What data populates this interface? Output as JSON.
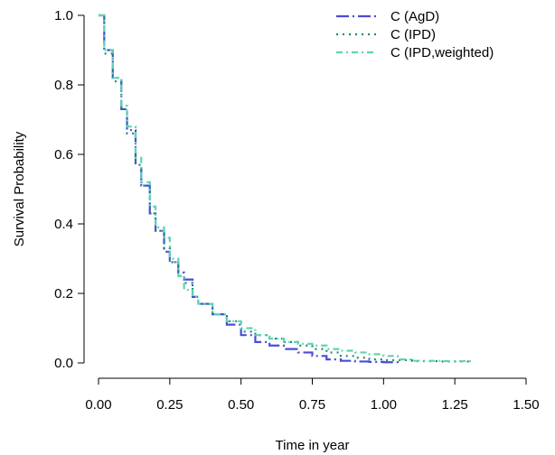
{
  "chart_data": {
    "type": "line",
    "title": "",
    "xlabel": "Time in year",
    "ylabel": "Survival Probability",
    "xlim": [
      0,
      1.5
    ],
    "ylim": [
      0,
      1.0
    ],
    "xticks": [
      "0.00",
      "0.25",
      "0.50",
      "0.75",
      "1.00",
      "1.25",
      "1.50"
    ],
    "yticks": [
      "0.0",
      "0.2",
      "0.4",
      "0.6",
      "0.8",
      "1.0"
    ],
    "grid": false,
    "legend_position": "top-right",
    "series": [
      {
        "name": "C (AgD)",
        "color": "#4b4bd8",
        "dash": "long-dash-dot",
        "x": [
          0.0,
          0.02,
          0.05,
          0.08,
          0.1,
          0.13,
          0.15,
          0.18,
          0.2,
          0.23,
          0.25,
          0.28,
          0.3,
          0.33,
          0.35,
          0.4,
          0.45,
          0.5,
          0.55,
          0.6,
          0.65,
          0.7,
          0.75,
          0.8,
          0.85,
          0.9,
          0.95,
          1.0,
          1.05
        ],
        "y": [
          1.0,
          0.9,
          0.82,
          0.73,
          0.67,
          0.57,
          0.51,
          0.43,
          0.38,
          0.32,
          0.29,
          0.26,
          0.24,
          0.19,
          0.17,
          0.14,
          0.11,
          0.08,
          0.06,
          0.05,
          0.04,
          0.03,
          0.02,
          0.01,
          0.006,
          0.004,
          0.003,
          0.002,
          0.0
        ]
      },
      {
        "name": "C (IPD)",
        "color": "#1f8a7a",
        "dash": "dotted",
        "x": [
          0.0,
          0.02,
          0.05,
          0.08,
          0.1,
          0.13,
          0.15,
          0.18,
          0.2,
          0.23,
          0.25,
          0.28,
          0.3,
          0.33,
          0.35,
          0.4,
          0.45,
          0.5,
          0.55,
          0.6,
          0.65,
          0.7,
          0.75,
          0.8,
          0.85,
          0.9,
          0.95,
          1.0,
          1.1,
          1.2,
          1.31
        ],
        "y": [
          1.0,
          0.89,
          0.81,
          0.73,
          0.66,
          0.57,
          0.51,
          0.43,
          0.38,
          0.33,
          0.29,
          0.25,
          0.23,
          0.19,
          0.17,
          0.14,
          0.12,
          0.09,
          0.08,
          0.07,
          0.06,
          0.05,
          0.04,
          0.03,
          0.02,
          0.015,
          0.01,
          0.008,
          0.005,
          0.004,
          0.004
        ]
      },
      {
        "name": "C (IPD,weighted)",
        "color": "#5fd3b2",
        "dash": "dash-dot",
        "x": [
          0.0,
          0.02,
          0.05,
          0.08,
          0.1,
          0.13,
          0.15,
          0.18,
          0.2,
          0.23,
          0.25,
          0.28,
          0.3,
          0.33,
          0.35,
          0.4,
          0.45,
          0.5,
          0.55,
          0.6,
          0.65,
          0.7,
          0.75,
          0.8,
          0.85,
          0.9,
          0.95,
          1.0,
          1.05,
          1.1,
          1.2,
          1.31
        ],
        "y": [
          1.0,
          0.9,
          0.82,
          0.74,
          0.68,
          0.59,
          0.52,
          0.45,
          0.39,
          0.36,
          0.3,
          0.25,
          0.21,
          0.19,
          0.17,
          0.14,
          0.12,
          0.1,
          0.08,
          0.07,
          0.06,
          0.055,
          0.05,
          0.04,
          0.035,
          0.03,
          0.025,
          0.02,
          0.01,
          0.006,
          0.005,
          0.004
        ]
      }
    ]
  }
}
